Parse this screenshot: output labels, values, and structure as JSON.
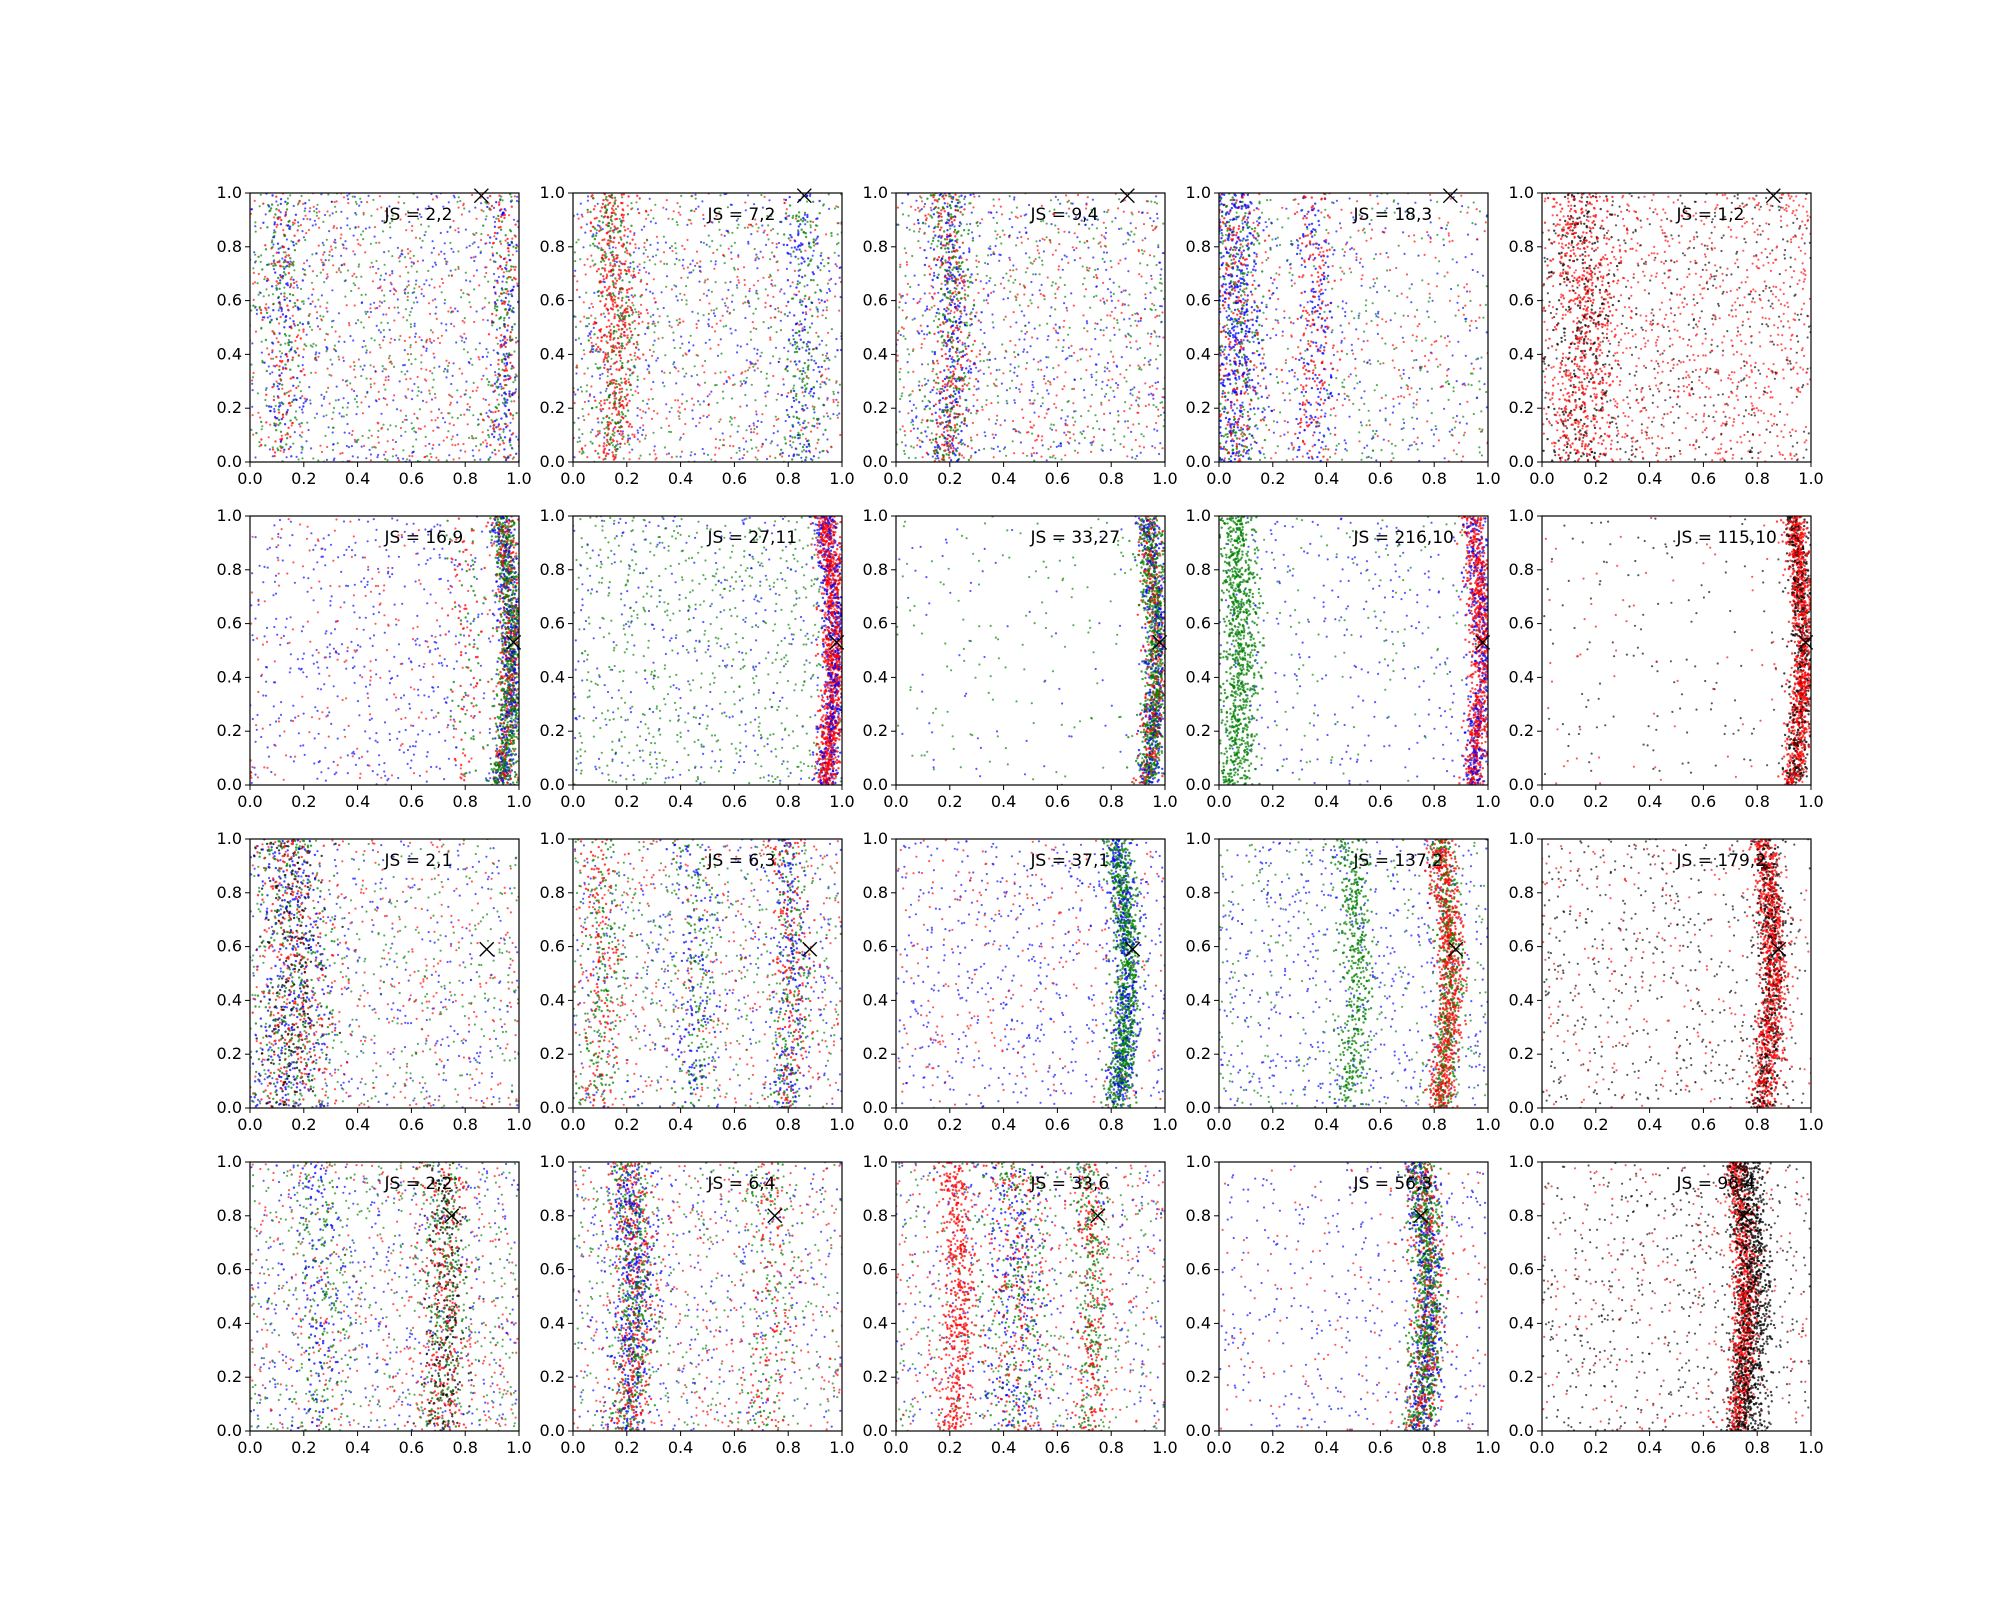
{
  "chart_data": {
    "type": "scatter",
    "rows": 4,
    "cols": 5,
    "xlim": [
      0,
      1
    ],
    "ylim": [
      0,
      1
    ],
    "xticks": [
      "0.0",
      "0.2",
      "0.4",
      "0.6",
      "0.8",
      "1.0"
    ],
    "yticks": [
      "0.0",
      "0.2",
      "0.4",
      "0.6",
      "0.8",
      "1.0"
    ],
    "grid": false,
    "legend": "none",
    "colors": {
      "red": "#ff0000",
      "green": "#008000",
      "blue": "#0000ff",
      "black": "#000000"
    },
    "panels": [
      {
        "label": "JS = 2,2",
        "marker": [
          0.86,
          0.99
        ],
        "bands": [
          {
            "c": 0.12,
            "s": 0.04,
            "amp": 0.02,
            "n": 300,
            "colors": [
              "green",
              "red",
              "blue"
            ]
          },
          {
            "c": 0.94,
            "s": 0.03,
            "amp": 0.02,
            "n": 300,
            "colors": [
              "blue",
              "green",
              "red"
            ]
          }
        ],
        "background": {
          "n": 1400,
          "colors": [
            "blue",
            "red",
            "green"
          ]
        }
      },
      {
        "label": "JS = 7,2",
        "marker": [
          0.86,
          0.99
        ],
        "bands": [
          {
            "c": 0.15,
            "s": 0.04,
            "amp": 0.03,
            "n": 600,
            "colors": [
              "red",
              "green",
              "red"
            ]
          },
          {
            "c": 0.85,
            "s": 0.04,
            "amp": 0.02,
            "n": 250,
            "colors": [
              "blue",
              "green"
            ]
          }
        ],
        "background": {
          "n": 1300,
          "colors": [
            "blue",
            "red",
            "green"
          ]
        }
      },
      {
        "label": "JS = 9,4",
        "marker": [
          0.86,
          0.99
        ],
        "bands": [
          {
            "c": 0.2,
            "s": 0.04,
            "amp": 0.03,
            "n": 700,
            "colors": [
              "green",
              "blue",
              "red"
            ]
          }
        ],
        "background": {
          "n": 1300,
          "colors": [
            "blue",
            "green",
            "red"
          ]
        }
      },
      {
        "label": "JS = 18,3",
        "marker": [
          0.86,
          0.99
        ],
        "bands": [
          {
            "c": 0.06,
            "s": 0.05,
            "amp": 0.02,
            "n": 900,
            "colors": [
              "blue",
              "green",
              "red",
              "blue"
            ]
          },
          {
            "c": 0.35,
            "s": 0.04,
            "amp": 0.03,
            "n": 300,
            "colors": [
              "blue",
              "red"
            ]
          }
        ],
        "background": {
          "n": 900,
          "colors": [
            "blue",
            "green",
            "red"
          ]
        }
      },
      {
        "label": "JS = 1,2",
        "marker": [
          0.86,
          0.99
        ],
        "bands": [
          {
            "c": 0.15,
            "s": 0.06,
            "amp": 0.03,
            "n": 700,
            "colors": [
              "red",
              "black",
              "red"
            ]
          }
        ],
        "background": {
          "n": 1500,
          "colors": [
            "red",
            "red",
            "black"
          ]
        }
      },
      {
        "label": "JS = 16,9",
        "marker": [
          0.98,
          0.53
        ],
        "bands": [
          {
            "c": 0.955,
            "s": 0.022,
            "amp": 0.035,
            "n": 1500,
            "colors": [
              "green",
              "red",
              "blue",
              "green"
            ]
          },
          {
            "c": 0.8,
            "s": 0.04,
            "amp": 0.03,
            "n": 120,
            "colors": [
              "green",
              "red"
            ]
          }
        ],
        "background": {
          "n": 700,
          "colors": [
            "blue",
            "red",
            "blue"
          ]
        }
      },
      {
        "label": "JS = 27,11",
        "marker": [
          0.98,
          0.53
        ],
        "bands": [
          {
            "c": 0.955,
            "s": 0.022,
            "amp": 0.035,
            "n": 1600,
            "colors": [
              "red",
              "blue",
              "red"
            ]
          }
        ],
        "background": {
          "n": 1000,
          "colors": [
            "green",
            "green",
            "blue"
          ]
        }
      },
      {
        "label": "JS = 33,27",
        "marker": [
          0.98,
          0.53
        ],
        "bands": [
          {
            "c": 0.95,
            "s": 0.022,
            "amp": 0.035,
            "n": 1500,
            "colors": [
              "green",
              "green",
              "blue",
              "red"
            ]
          }
        ],
        "background": {
          "n": 220,
          "colors": [
            "green",
            "green",
            "blue"
          ]
        }
      },
      {
        "label": "JS = 216,10",
        "marker": [
          0.98,
          0.53
        ],
        "bands": [
          {
            "c": 0.96,
            "s": 0.022,
            "amp": 0.035,
            "n": 1200,
            "colors": [
              "red",
              "blue",
              "red"
            ]
          },
          {
            "c": 0.07,
            "s": 0.035,
            "amp": 0.02,
            "n": 900,
            "colors": [
              "green"
            ]
          }
        ],
        "background": {
          "n": 450,
          "colors": [
            "blue",
            "green",
            "blue"
          ]
        }
      },
      {
        "label": "JS = 115,10",
        "marker": [
          0.98,
          0.53
        ],
        "bands": [
          {
            "c": 0.955,
            "s": 0.022,
            "amp": 0.035,
            "n": 1500,
            "colors": [
              "red",
              "black",
              "red"
            ]
          }
        ],
        "background": {
          "n": 220,
          "colors": [
            "black",
            "red",
            "black"
          ]
        }
      },
      {
        "label": "JS = 2,1",
        "marker": [
          0.88,
          0.59
        ],
        "bands": [
          {
            "c": 0.15,
            "s": 0.07,
            "amp": 0.04,
            "n": 1000,
            "colors": [
              "green",
              "blue",
              "red",
              "black"
            ]
          }
        ],
        "background": {
          "n": 1100,
          "colors": [
            "blue",
            "red",
            "green"
          ]
        }
      },
      {
        "label": "JS = 6,3",
        "marker": [
          0.88,
          0.59
        ],
        "bands": [
          {
            "c": 0.8,
            "s": 0.035,
            "amp": 0.04,
            "n": 500,
            "colors": [
              "green",
              "blue",
              "red"
            ]
          },
          {
            "c": 0.1,
            "s": 0.04,
            "amp": 0.03,
            "n": 300,
            "colors": [
              "red",
              "green"
            ]
          },
          {
            "c": 0.45,
            "s": 0.04,
            "amp": 0.03,
            "n": 250,
            "colors": [
              "blue",
              "green"
            ]
          }
        ],
        "background": {
          "n": 1200,
          "colors": [
            "blue",
            "red",
            "green"
          ]
        }
      },
      {
        "label": "JS = 37,1",
        "marker": [
          0.88,
          0.59
        ],
        "bands": [
          {
            "c": 0.84,
            "s": 0.025,
            "amp": 0.04,
            "n": 1300,
            "colors": [
              "green",
              "green",
              "blue"
            ]
          }
        ],
        "background": {
          "n": 800,
          "colors": [
            "blue",
            "blue",
            "red"
          ]
        }
      },
      {
        "label": "JS = 137,2",
        "marker": [
          0.88,
          0.59
        ],
        "bands": [
          {
            "c": 0.84,
            "s": 0.025,
            "amp": 0.04,
            "n": 1200,
            "colors": [
              "red",
              "red",
              "green"
            ]
          },
          {
            "c": 0.5,
            "s": 0.03,
            "amp": 0.03,
            "n": 450,
            "colors": [
              "green"
            ]
          }
        ],
        "background": {
          "n": 900,
          "colors": [
            "blue",
            "green",
            "blue"
          ]
        }
      },
      {
        "label": "JS = 179,2",
        "marker": [
          0.88,
          0.59
        ],
        "bands": [
          {
            "c": 0.84,
            "s": 0.025,
            "amp": 0.04,
            "n": 1400,
            "colors": [
              "red",
              "red",
              "black"
            ]
          }
        ],
        "background": {
          "n": 750,
          "colors": [
            "black",
            "black",
            "red"
          ]
        }
      },
      {
        "label": "JS = 2,2",
        "marker": [
          0.75,
          0.8
        ],
        "bands": [
          {
            "c": 0.72,
            "s": 0.04,
            "amp": 0.03,
            "n": 700,
            "colors": [
              "green",
              "red",
              "black"
            ]
          },
          {
            "c": 0.25,
            "s": 0.05,
            "amp": 0.03,
            "n": 250,
            "colors": [
              "blue",
              "green"
            ]
          }
        ],
        "background": {
          "n": 1300,
          "colors": [
            "blue",
            "red",
            "green"
          ]
        }
      },
      {
        "label": "JS = 6,4",
        "marker": [
          0.75,
          0.8
        ],
        "bands": [
          {
            "c": 0.22,
            "s": 0.04,
            "amp": 0.03,
            "n": 1100,
            "colors": [
              "green",
              "blue",
              "red"
            ]
          },
          {
            "c": 0.72,
            "s": 0.05,
            "amp": 0.03,
            "n": 200,
            "colors": [
              "red",
              "green"
            ]
          }
        ],
        "background": {
          "n": 1100,
          "colors": [
            "blue",
            "red",
            "green"
          ]
        }
      },
      {
        "label": "JS = 33,6",
        "marker": [
          0.75,
          0.8
        ],
        "bands": [
          {
            "c": 0.22,
            "s": 0.03,
            "amp": 0.03,
            "n": 500,
            "colors": [
              "red"
            ]
          },
          {
            "c": 0.45,
            "s": 0.06,
            "amp": 0.03,
            "n": 600,
            "colors": [
              "blue",
              "green",
              "red"
            ]
          },
          {
            "c": 0.72,
            "s": 0.03,
            "amp": 0.03,
            "n": 400,
            "colors": [
              "green",
              "red"
            ]
          }
        ],
        "background": {
          "n": 1000,
          "colors": [
            "blue",
            "red",
            "green"
          ]
        }
      },
      {
        "label": "JS = 56,3",
        "marker": [
          0.75,
          0.8
        ],
        "bands": [
          {
            "c": 0.76,
            "s": 0.03,
            "amp": 0.04,
            "n": 1500,
            "colors": [
              "green",
              "green",
              "blue",
              "red"
            ]
          }
        ],
        "background": {
          "n": 500,
          "colors": [
            "blue",
            "red",
            "blue"
          ]
        }
      },
      {
        "label": "JS = 96,4",
        "marker": [
          0.75,
          0.8
        ],
        "bands": [
          {
            "c": 0.74,
            "s": 0.025,
            "amp": 0.035,
            "n": 1300,
            "colors": [
              "red",
              "black",
              "red"
            ]
          },
          {
            "c": 0.78,
            "s": 0.03,
            "amp": 0.035,
            "n": 700,
            "colors": [
              "black"
            ]
          }
        ],
        "background": {
          "n": 800,
          "colors": [
            "black",
            "red",
            "black"
          ]
        }
      }
    ]
  }
}
